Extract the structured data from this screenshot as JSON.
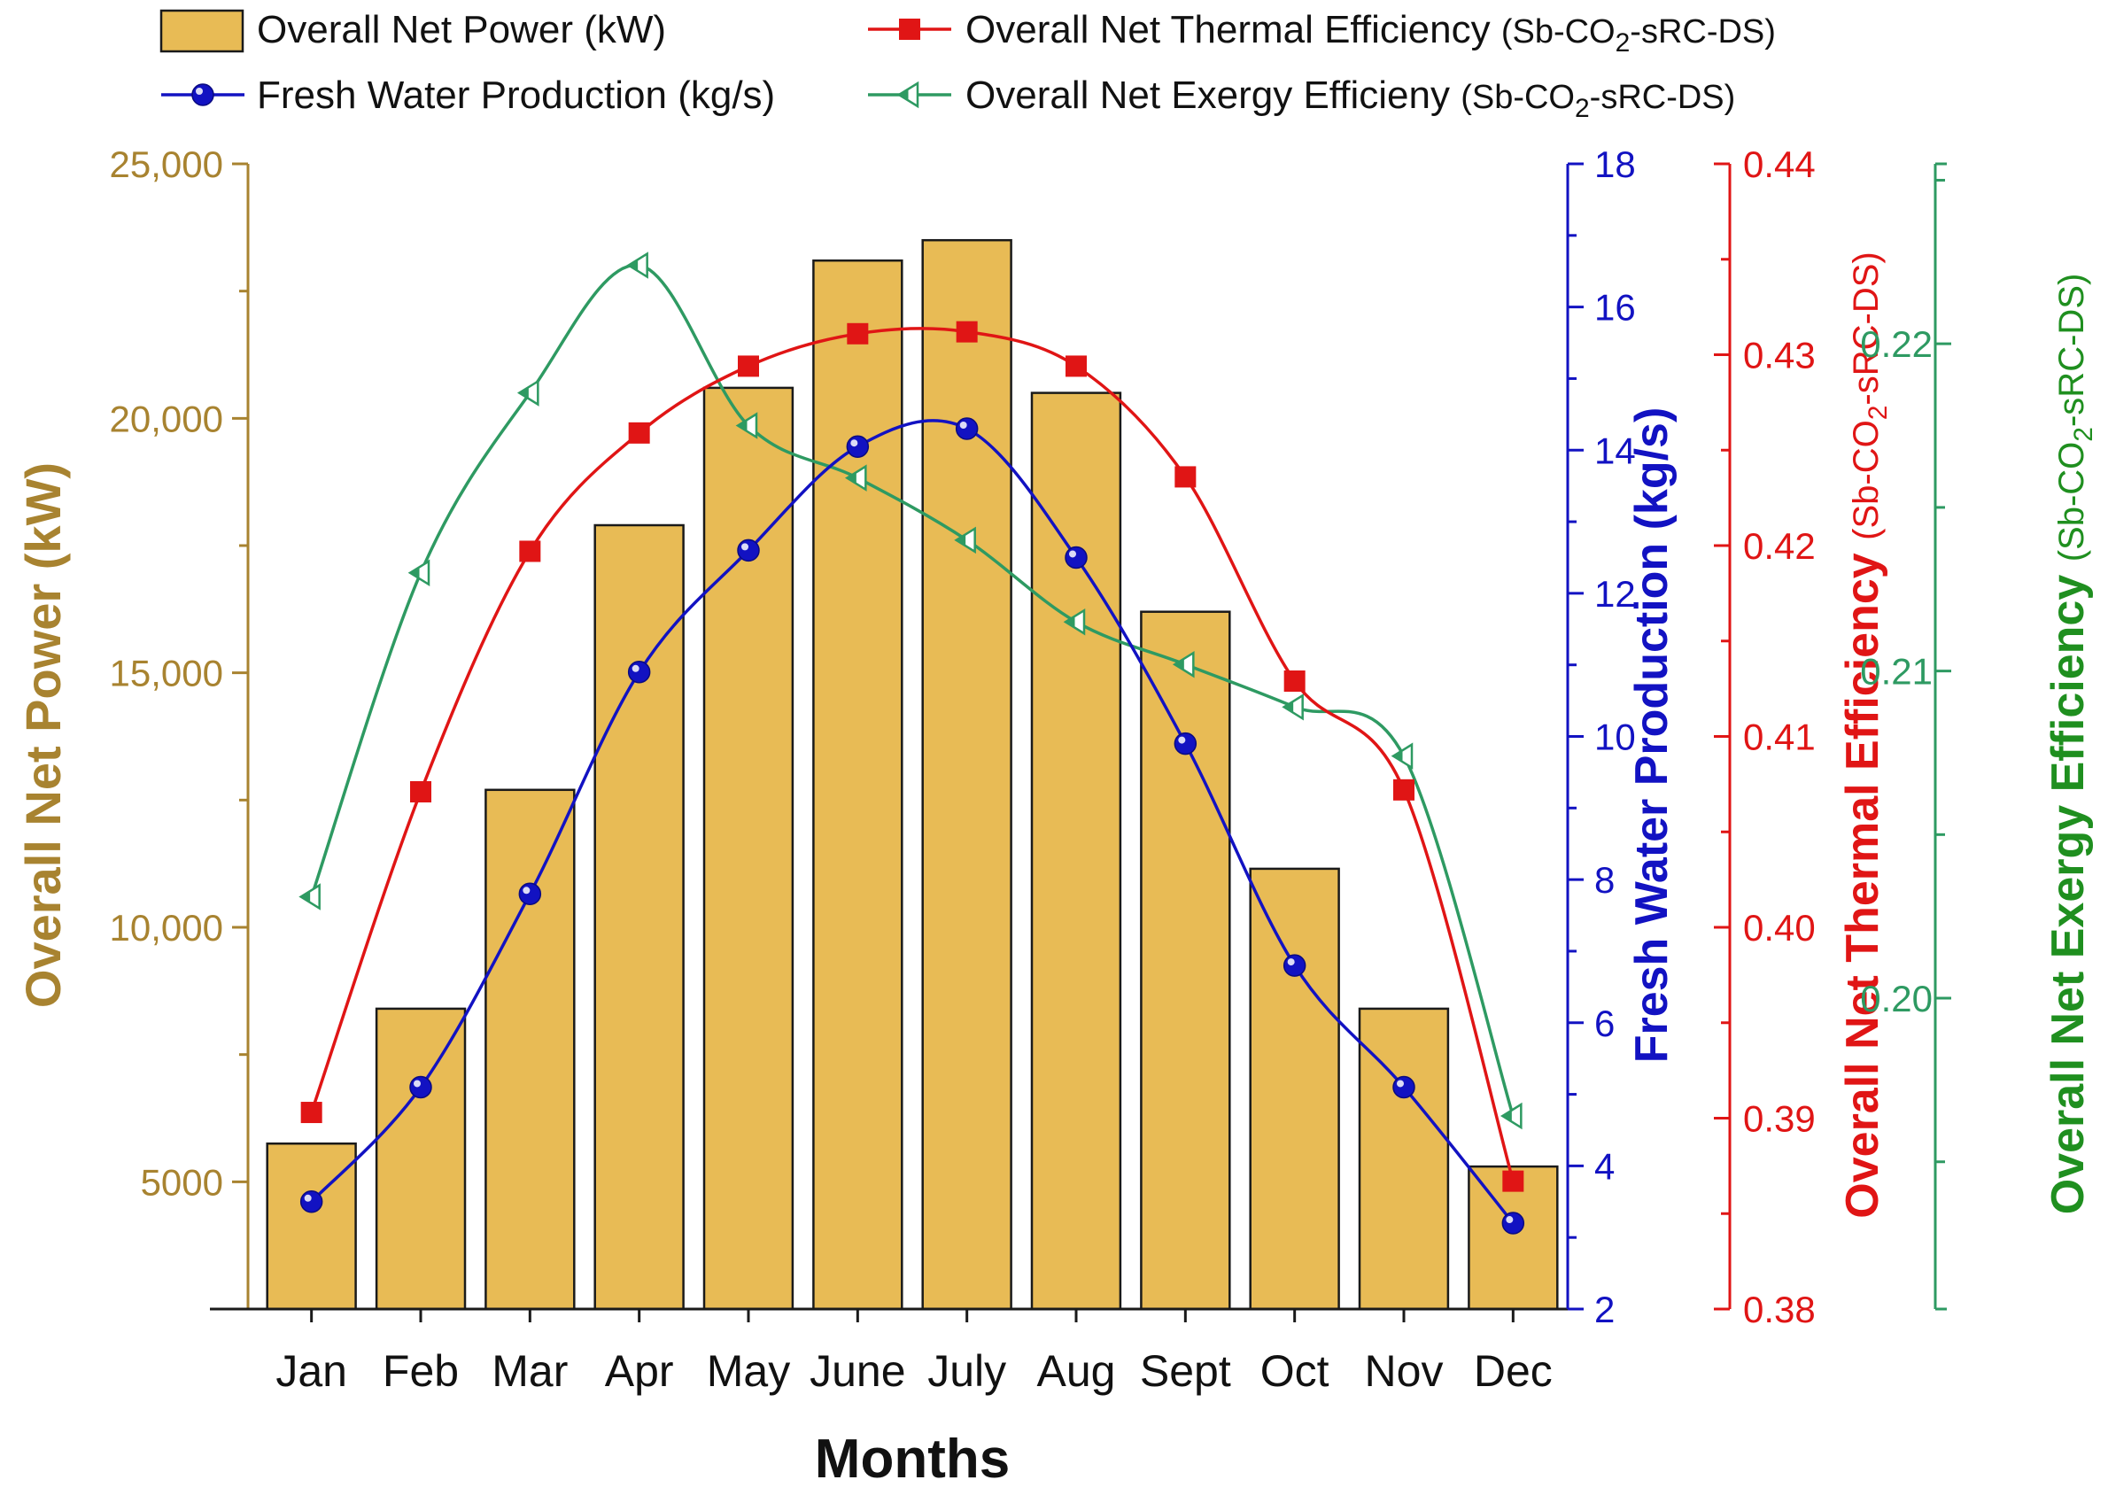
{
  "chart_data": {
    "type": "bar",
    "categories": [
      "Jan",
      "Feb",
      "Mar",
      "Apr",
      "May",
      "June",
      "July",
      "Aug",
      "Sept",
      "Oct",
      "Nov",
      "Dec"
    ],
    "xlabel": "Months",
    "series": [
      {
        "name": "Overall Net Power (kW)",
        "type": "bar",
        "axis": "left",
        "color": "#E8BB55",
        "values": [
          5750,
          8400,
          12700,
          17900,
          20600,
          23100,
          23500,
          20500,
          16200,
          11150,
          8400,
          5300
        ]
      },
      {
        "name": "Fresh Water Production (kg/s)",
        "type": "line",
        "axis": "right1",
        "color": "#1212C2",
        "marker": "circle",
        "values": [
          3.5,
          5.1,
          7.8,
          10.9,
          12.6,
          14.05,
          14.3,
          12.5,
          9.9,
          6.8,
          5.1,
          3.2
        ]
      },
      {
        "name": "Overall Net Thermal Efficiency",
        "name_suffix": "(Sb-CO",
        "name_sub": "2",
        "name_tail": "-sRC-DS)",
        "type": "line",
        "axis": "right2",
        "color": "#E01515",
        "marker": "square",
        "values": [
          0.3903,
          0.4071,
          0.4197,
          0.4259,
          0.4294,
          0.4311,
          0.4312,
          0.4294,
          0.4236,
          0.4129,
          0.4072,
          0.3867
        ]
      },
      {
        "name": "Overall Net Exergy Efficieny",
        "name_suffix": "(Sb-CO",
        "name_sub": "2",
        "name_tail": "-sRC-DS)",
        "type": "line",
        "axis": "right3",
        "color": "#2E9A62",
        "marker": "half-triangle",
        "values": [
          0.2031,
          0.213,
          0.2185,
          0.2224,
          0.2175,
          0.2159,
          0.214,
          0.2115,
          0.2102,
          0.2089,
          0.2074,
          0.1964
        ]
      }
    ],
    "axes": {
      "left": {
        "label": "Overall Net Power (kW)",
        "color": "#A88330",
        "range": [
          2500,
          25000
        ],
        "ticks": [
          5000,
          10000,
          15000,
          20000,
          25000
        ],
        "tick_labels": [
          "5000",
          "10,000",
          "15,000",
          "20,000",
          "25,000"
        ]
      },
      "right1": {
        "label": "Fresh Water Production (kg/s)",
        "color": "#1212C2",
        "range": [
          2,
          18
        ],
        "ticks": [
          2,
          4,
          6,
          8,
          10,
          12,
          14,
          16,
          18
        ],
        "tick_labels": [
          "2",
          "4",
          "6",
          "8",
          "10",
          "12",
          "14",
          "16",
          "18"
        ]
      },
      "right2": {
        "label": "Overall Net Thermal Efficiency",
        "label_suffix": "(Sb-CO",
        "label_sub": "2",
        "label_tail": "-sRC-DS)",
        "color": "#E01515",
        "range": [
          0.38,
          0.44
        ],
        "ticks": [
          0.38,
          0.39,
          0.4,
          0.41,
          0.42,
          0.43,
          0.44
        ],
        "tick_labels": [
          "0.38",
          "0.39",
          "0.40",
          "0.41",
          "0.42",
          "0.43",
          "0.44"
        ]
      },
      "right3": {
        "label": "Overall Net Exergy Efficiency",
        "label_suffix": "(Sb-CO",
        "label_sub": "2",
        "label_tail": "-sRC-DS)",
        "color": "#2E9A62",
        "label_color": "#1F8F1F",
        "range": [
          0.1905,
          0.2255
        ],
        "ticks": [
          0.2,
          0.21,
          0.22
        ],
        "tick_labels": [
          "0.20",
          "0.21",
          "0.22"
        ]
      }
    },
    "legend": {
      "placement": "top",
      "entries": [
        "Overall Net Power (kW)",
        "Overall Net Thermal Efficiency",
        "Fresh Water Production (kg/s)",
        "Overall Net Exergy Efficieny"
      ]
    }
  }
}
